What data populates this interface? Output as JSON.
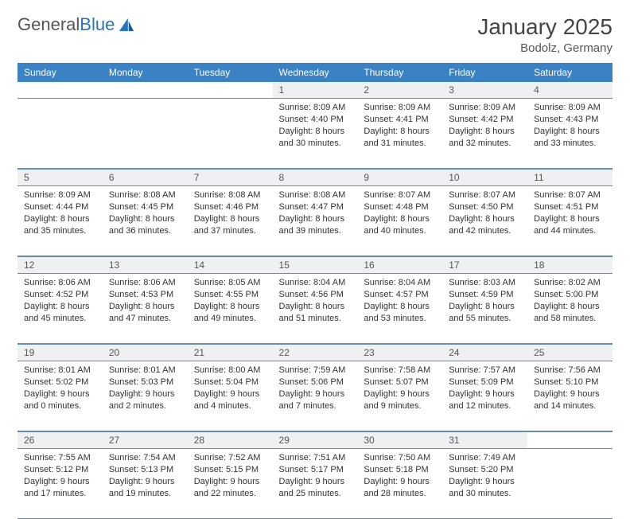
{
  "logo": {
    "text_general": "General",
    "text_blue": "Blue"
  },
  "title": "January 2025",
  "location": "Bodolz, Germany",
  "weekdays": [
    "Sunday",
    "Monday",
    "Tuesday",
    "Wednesday",
    "Thursday",
    "Friday",
    "Saturday"
  ],
  "colors": {
    "header_bg": "#3b82c4",
    "header_text": "#ffffff",
    "daynum_bg": "#eef0f2",
    "border": "#6a8aaa",
    "body_text": "#333333",
    "logo_gray": "#555555",
    "logo_blue": "#2b74b8"
  },
  "weeks": [
    [
      null,
      null,
      null,
      {
        "n": "1",
        "sunrise": "Sunrise: 8:09 AM",
        "sunset": "Sunset: 4:40 PM",
        "day1": "Daylight: 8 hours",
        "day2": "and 30 minutes."
      },
      {
        "n": "2",
        "sunrise": "Sunrise: 8:09 AM",
        "sunset": "Sunset: 4:41 PM",
        "day1": "Daylight: 8 hours",
        "day2": "and 31 minutes."
      },
      {
        "n": "3",
        "sunrise": "Sunrise: 8:09 AM",
        "sunset": "Sunset: 4:42 PM",
        "day1": "Daylight: 8 hours",
        "day2": "and 32 minutes."
      },
      {
        "n": "4",
        "sunrise": "Sunrise: 8:09 AM",
        "sunset": "Sunset: 4:43 PM",
        "day1": "Daylight: 8 hours",
        "day2": "and 33 minutes."
      }
    ],
    [
      {
        "n": "5",
        "sunrise": "Sunrise: 8:09 AM",
        "sunset": "Sunset: 4:44 PM",
        "day1": "Daylight: 8 hours",
        "day2": "and 35 minutes."
      },
      {
        "n": "6",
        "sunrise": "Sunrise: 8:08 AM",
        "sunset": "Sunset: 4:45 PM",
        "day1": "Daylight: 8 hours",
        "day2": "and 36 minutes."
      },
      {
        "n": "7",
        "sunrise": "Sunrise: 8:08 AM",
        "sunset": "Sunset: 4:46 PM",
        "day1": "Daylight: 8 hours",
        "day2": "and 37 minutes."
      },
      {
        "n": "8",
        "sunrise": "Sunrise: 8:08 AM",
        "sunset": "Sunset: 4:47 PM",
        "day1": "Daylight: 8 hours",
        "day2": "and 39 minutes."
      },
      {
        "n": "9",
        "sunrise": "Sunrise: 8:07 AM",
        "sunset": "Sunset: 4:48 PM",
        "day1": "Daylight: 8 hours",
        "day2": "and 40 minutes."
      },
      {
        "n": "10",
        "sunrise": "Sunrise: 8:07 AM",
        "sunset": "Sunset: 4:50 PM",
        "day1": "Daylight: 8 hours",
        "day2": "and 42 minutes."
      },
      {
        "n": "11",
        "sunrise": "Sunrise: 8:07 AM",
        "sunset": "Sunset: 4:51 PM",
        "day1": "Daylight: 8 hours",
        "day2": "and 44 minutes."
      }
    ],
    [
      {
        "n": "12",
        "sunrise": "Sunrise: 8:06 AM",
        "sunset": "Sunset: 4:52 PM",
        "day1": "Daylight: 8 hours",
        "day2": "and 45 minutes."
      },
      {
        "n": "13",
        "sunrise": "Sunrise: 8:06 AM",
        "sunset": "Sunset: 4:53 PM",
        "day1": "Daylight: 8 hours",
        "day2": "and 47 minutes."
      },
      {
        "n": "14",
        "sunrise": "Sunrise: 8:05 AM",
        "sunset": "Sunset: 4:55 PM",
        "day1": "Daylight: 8 hours",
        "day2": "and 49 minutes."
      },
      {
        "n": "15",
        "sunrise": "Sunrise: 8:04 AM",
        "sunset": "Sunset: 4:56 PM",
        "day1": "Daylight: 8 hours",
        "day2": "and 51 minutes."
      },
      {
        "n": "16",
        "sunrise": "Sunrise: 8:04 AM",
        "sunset": "Sunset: 4:57 PM",
        "day1": "Daylight: 8 hours",
        "day2": "and 53 minutes."
      },
      {
        "n": "17",
        "sunrise": "Sunrise: 8:03 AM",
        "sunset": "Sunset: 4:59 PM",
        "day1": "Daylight: 8 hours",
        "day2": "and 55 minutes."
      },
      {
        "n": "18",
        "sunrise": "Sunrise: 8:02 AM",
        "sunset": "Sunset: 5:00 PM",
        "day1": "Daylight: 8 hours",
        "day2": "and 58 minutes."
      }
    ],
    [
      {
        "n": "19",
        "sunrise": "Sunrise: 8:01 AM",
        "sunset": "Sunset: 5:02 PM",
        "day1": "Daylight: 9 hours",
        "day2": "and 0 minutes."
      },
      {
        "n": "20",
        "sunrise": "Sunrise: 8:01 AM",
        "sunset": "Sunset: 5:03 PM",
        "day1": "Daylight: 9 hours",
        "day2": "and 2 minutes."
      },
      {
        "n": "21",
        "sunrise": "Sunrise: 8:00 AM",
        "sunset": "Sunset: 5:04 PM",
        "day1": "Daylight: 9 hours",
        "day2": "and 4 minutes."
      },
      {
        "n": "22",
        "sunrise": "Sunrise: 7:59 AM",
        "sunset": "Sunset: 5:06 PM",
        "day1": "Daylight: 9 hours",
        "day2": "and 7 minutes."
      },
      {
        "n": "23",
        "sunrise": "Sunrise: 7:58 AM",
        "sunset": "Sunset: 5:07 PM",
        "day1": "Daylight: 9 hours",
        "day2": "and 9 minutes."
      },
      {
        "n": "24",
        "sunrise": "Sunrise: 7:57 AM",
        "sunset": "Sunset: 5:09 PM",
        "day1": "Daylight: 9 hours",
        "day2": "and 12 minutes."
      },
      {
        "n": "25",
        "sunrise": "Sunrise: 7:56 AM",
        "sunset": "Sunset: 5:10 PM",
        "day1": "Daylight: 9 hours",
        "day2": "and 14 minutes."
      }
    ],
    [
      {
        "n": "26",
        "sunrise": "Sunrise: 7:55 AM",
        "sunset": "Sunset: 5:12 PM",
        "day1": "Daylight: 9 hours",
        "day2": "and 17 minutes."
      },
      {
        "n": "27",
        "sunrise": "Sunrise: 7:54 AM",
        "sunset": "Sunset: 5:13 PM",
        "day1": "Daylight: 9 hours",
        "day2": "and 19 minutes."
      },
      {
        "n": "28",
        "sunrise": "Sunrise: 7:52 AM",
        "sunset": "Sunset: 5:15 PM",
        "day1": "Daylight: 9 hours",
        "day2": "and 22 minutes."
      },
      {
        "n": "29",
        "sunrise": "Sunrise: 7:51 AM",
        "sunset": "Sunset: 5:17 PM",
        "day1": "Daylight: 9 hours",
        "day2": "and 25 minutes."
      },
      {
        "n": "30",
        "sunrise": "Sunrise: 7:50 AM",
        "sunset": "Sunset: 5:18 PM",
        "day1": "Daylight: 9 hours",
        "day2": "and 28 minutes."
      },
      {
        "n": "31",
        "sunrise": "Sunrise: 7:49 AM",
        "sunset": "Sunset: 5:20 PM",
        "day1": "Daylight: 9 hours",
        "day2": "and 30 minutes."
      },
      null
    ]
  ]
}
